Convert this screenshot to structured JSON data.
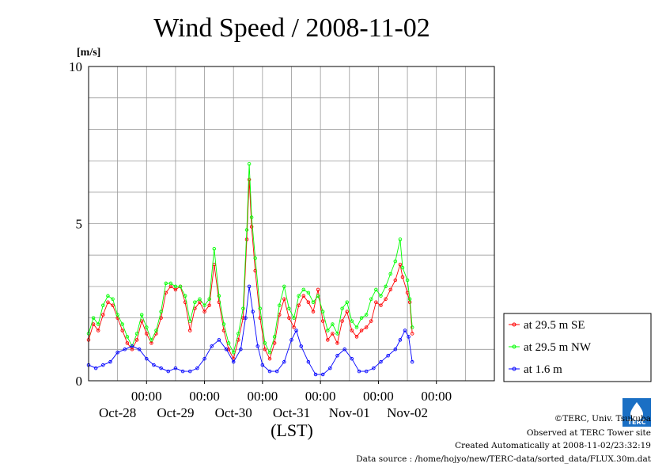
{
  "chart_data": {
    "type": "line",
    "title": "Wind Speed / 2008-11-02",
    "ylabel": "[m/s]",
    "xlabel": "(LST)",
    "ylim": [
      0,
      10
    ],
    "y_ticks": [
      "0",
      "5",
      "10"
    ],
    "x_ticks": [
      {
        "time": "00:00",
        "date": "Oct-28"
      },
      {
        "time": "00:00",
        "date": "Oct-29"
      },
      {
        "time": "00:00",
        "date": "Oct-30"
      },
      {
        "time": "00:00",
        "date": "Oct-31"
      },
      {
        "time": "00:00",
        "date": "Nov-01"
      },
      {
        "time": "00:00",
        "date": "Nov-02"
      }
    ],
    "xlim": [
      "2008-10-27T00:00",
      "2008-11-03T00:00"
    ],
    "grid": true,
    "legend_position": "right",
    "series": [
      {
        "name": "at 29.5 m SE",
        "color": "#ff0000",
        "marker": "circle",
        "points": [
          [
            "2008-10-27T00:00",
            1.3
          ],
          [
            "2008-10-27T02:00",
            1.8
          ],
          [
            "2008-10-27T04:00",
            1.6
          ],
          [
            "2008-10-27T06:00",
            2.1
          ],
          [
            "2008-10-27T08:00",
            2.5
          ],
          [
            "2008-10-27T10:00",
            2.4
          ],
          [
            "2008-10-27T12:00",
            2.0
          ],
          [
            "2008-10-27T14:00",
            1.6
          ],
          [
            "2008-10-27T16:00",
            1.2
          ],
          [
            "2008-10-27T18:00",
            1.0
          ],
          [
            "2008-10-27T20:00",
            1.3
          ],
          [
            "2008-10-27T22:00",
            1.9
          ],
          [
            "2008-10-28T00:00",
            1.5
          ],
          [
            "2008-10-28T02:00",
            1.2
          ],
          [
            "2008-10-28T04:00",
            1.5
          ],
          [
            "2008-10-28T06:00",
            2.0
          ],
          [
            "2008-10-28T08:00",
            2.8
          ],
          [
            "2008-10-28T10:00",
            3.0
          ],
          [
            "2008-10-28T12:00",
            2.9
          ],
          [
            "2008-10-28T14:00",
            3.0
          ],
          [
            "2008-10-28T16:00",
            2.5
          ],
          [
            "2008-10-28T18:00",
            1.6
          ],
          [
            "2008-10-28T20:00",
            2.3
          ],
          [
            "2008-10-28T22:00",
            2.5
          ],
          [
            "2008-10-29T00:00",
            2.2
          ],
          [
            "2008-10-29T02:00",
            2.4
          ],
          [
            "2008-10-29T04:00",
            3.7
          ],
          [
            "2008-10-29T06:00",
            2.5
          ],
          [
            "2008-10-29T08:00",
            1.6
          ],
          [
            "2008-10-29T10:00",
            1.0
          ],
          [
            "2008-10-29T12:00",
            0.7
          ],
          [
            "2008-10-29T14:00",
            1.3
          ],
          [
            "2008-10-29T16:00",
            2.0
          ],
          [
            "2008-10-29T17:30",
            4.5
          ],
          [
            "2008-10-29T18:30",
            6.4
          ],
          [
            "2008-10-29T19:30",
            4.9
          ],
          [
            "2008-10-29T21:00",
            3.5
          ],
          [
            "2008-10-29T23:00",
            2.0
          ],
          [
            "2008-10-30T01:00",
            1.0
          ],
          [
            "2008-10-30T03:00",
            0.7
          ],
          [
            "2008-10-30T05:00",
            1.2
          ],
          [
            "2008-10-30T07:00",
            2.1
          ],
          [
            "2008-10-30T09:00",
            2.6
          ],
          [
            "2008-10-30T11:00",
            2.0
          ],
          [
            "2008-10-30T13:00",
            1.7
          ],
          [
            "2008-10-30T15:00",
            2.4
          ],
          [
            "2008-10-30T17:00",
            2.7
          ],
          [
            "2008-10-30T19:00",
            2.5
          ],
          [
            "2008-10-30T21:00",
            2.2
          ],
          [
            "2008-10-30T23:00",
            2.9
          ],
          [
            "2008-10-31T01:00",
            1.9
          ],
          [
            "2008-10-31T03:00",
            1.3
          ],
          [
            "2008-10-31T05:00",
            1.5
          ],
          [
            "2008-10-31T07:00",
            1.2
          ],
          [
            "2008-10-31T09:00",
            1.9
          ],
          [
            "2008-10-31T11:00",
            2.2
          ],
          [
            "2008-10-31T13:00",
            1.6
          ],
          [
            "2008-10-31T15:00",
            1.4
          ],
          [
            "2008-10-31T17:00",
            1.6
          ],
          [
            "2008-10-31T19:00",
            1.7
          ],
          [
            "2008-10-31T21:00",
            1.9
          ],
          [
            "2008-10-31T23:00",
            2.5
          ],
          [
            "2008-11-01T01:00",
            2.4
          ],
          [
            "2008-11-01T03:00",
            2.6
          ],
          [
            "2008-11-01T05:00",
            2.9
          ],
          [
            "2008-11-01T07:00",
            3.2
          ],
          [
            "2008-11-01T09:00",
            3.7
          ],
          [
            "2008-11-01T10:00",
            3.3
          ],
          [
            "2008-11-01T12:00",
            2.8
          ],
          [
            "2008-11-01T13:00",
            2.5
          ],
          [
            "2008-11-01T14:00",
            1.5
          ]
        ]
      },
      {
        "name": "at 29.5 m NW",
        "color": "#00ff00",
        "marker": "circle",
        "points": [
          [
            "2008-10-27T00:00",
            1.5
          ],
          [
            "2008-10-27T02:00",
            2.0
          ],
          [
            "2008-10-27T04:00",
            1.8
          ],
          [
            "2008-10-27T06:00",
            2.4
          ],
          [
            "2008-10-27T08:00",
            2.7
          ],
          [
            "2008-10-27T10:00",
            2.6
          ],
          [
            "2008-10-27T12:00",
            2.1
          ],
          [
            "2008-10-27T14:00",
            1.8
          ],
          [
            "2008-10-27T16:00",
            1.4
          ],
          [
            "2008-10-27T18:00",
            1.1
          ],
          [
            "2008-10-27T20:00",
            1.5
          ],
          [
            "2008-10-27T22:00",
            2.1
          ],
          [
            "2008-10-28T00:00",
            1.7
          ],
          [
            "2008-10-28T02:00",
            1.3
          ],
          [
            "2008-10-28T04:00",
            1.6
          ],
          [
            "2008-10-28T06:00",
            2.2
          ],
          [
            "2008-10-28T08:00",
            3.1
          ],
          [
            "2008-10-28T10:00",
            3.1
          ],
          [
            "2008-10-28T12:00",
            3.0
          ],
          [
            "2008-10-28T14:00",
            3.0
          ],
          [
            "2008-10-28T16:00",
            2.7
          ],
          [
            "2008-10-28T18:00",
            1.9
          ],
          [
            "2008-10-28T20:00",
            2.5
          ],
          [
            "2008-10-28T22:00",
            2.6
          ],
          [
            "2008-10-29T00:00",
            2.4
          ],
          [
            "2008-10-29T02:00",
            2.6
          ],
          [
            "2008-10-29T04:00",
            4.2
          ],
          [
            "2008-10-29T06:00",
            2.7
          ],
          [
            "2008-10-29T08:00",
            1.8
          ],
          [
            "2008-10-29T10:00",
            1.2
          ],
          [
            "2008-10-29T12:00",
            0.9
          ],
          [
            "2008-10-29T14:00",
            1.5
          ],
          [
            "2008-10-29T16:00",
            2.3
          ],
          [
            "2008-10-29T17:30",
            4.8
          ],
          [
            "2008-10-29T18:30",
            6.9
          ],
          [
            "2008-10-29T19:30",
            5.2
          ],
          [
            "2008-10-29T21:00",
            3.9
          ],
          [
            "2008-10-29T23:00",
            2.3
          ],
          [
            "2008-10-30T01:00",
            1.2
          ],
          [
            "2008-10-30T03:00",
            0.9
          ],
          [
            "2008-10-30T05:00",
            1.4
          ],
          [
            "2008-10-30T07:00",
            2.4
          ],
          [
            "2008-10-30T09:00",
            3.0
          ],
          [
            "2008-10-30T11:00",
            2.3
          ],
          [
            "2008-10-30T13:00",
            2.0
          ],
          [
            "2008-10-30T15:00",
            2.7
          ],
          [
            "2008-10-30T17:00",
            2.9
          ],
          [
            "2008-10-30T19:00",
            2.8
          ],
          [
            "2008-10-30T21:00",
            2.5
          ],
          [
            "2008-10-30T23:00",
            2.7
          ],
          [
            "2008-10-31T01:00",
            2.2
          ],
          [
            "2008-10-31T03:00",
            1.6
          ],
          [
            "2008-10-31T05:00",
            1.8
          ],
          [
            "2008-10-31T07:00",
            1.5
          ],
          [
            "2008-10-31T09:00",
            2.3
          ],
          [
            "2008-10-31T11:00",
            2.5
          ],
          [
            "2008-10-31T13:00",
            1.9
          ],
          [
            "2008-10-31T15:00",
            1.7
          ],
          [
            "2008-10-31T17:00",
            2.0
          ],
          [
            "2008-10-31T19:00",
            2.1
          ],
          [
            "2008-10-31T21:00",
            2.6
          ],
          [
            "2008-10-31T23:00",
            2.9
          ],
          [
            "2008-11-01T01:00",
            2.7
          ],
          [
            "2008-11-01T03:00",
            3.0
          ],
          [
            "2008-11-01T05:00",
            3.4
          ],
          [
            "2008-11-01T07:00",
            3.8
          ],
          [
            "2008-11-01T09:00",
            4.5
          ],
          [
            "2008-11-01T10:00",
            3.6
          ],
          [
            "2008-11-01T12:00",
            3.2
          ],
          [
            "2008-11-01T13:00",
            2.6
          ],
          [
            "2008-11-01T14:00",
            1.7
          ]
        ]
      },
      {
        "name": "at 1.6 m",
        "color": "#0000ff",
        "marker": "circle",
        "points": [
          [
            "2008-10-27T00:00",
            0.5
          ],
          [
            "2008-10-27T03:00",
            0.4
          ],
          [
            "2008-10-27T06:00",
            0.5
          ],
          [
            "2008-10-27T09:00",
            0.6
          ],
          [
            "2008-10-27T12:00",
            0.9
          ],
          [
            "2008-10-27T15:00",
            1.0
          ],
          [
            "2008-10-27T18:00",
            1.1
          ],
          [
            "2008-10-27T21:00",
            1.0
          ],
          [
            "2008-10-28T00:00",
            0.7
          ],
          [
            "2008-10-28T03:00",
            0.5
          ],
          [
            "2008-10-28T06:00",
            0.4
          ],
          [
            "2008-10-28T09:00",
            0.3
          ],
          [
            "2008-10-28T12:00",
            0.4
          ],
          [
            "2008-10-28T15:00",
            0.3
          ],
          [
            "2008-10-28T18:00",
            0.3
          ],
          [
            "2008-10-28T21:00",
            0.4
          ],
          [
            "2008-10-29T00:00",
            0.7
          ],
          [
            "2008-10-29T03:00",
            1.1
          ],
          [
            "2008-10-29T06:00",
            1.3
          ],
          [
            "2008-10-29T09:00",
            1.0
          ],
          [
            "2008-10-29T12:00",
            0.6
          ],
          [
            "2008-10-29T15:00",
            1.0
          ],
          [
            "2008-10-29T17:00",
            2.0
          ],
          [
            "2008-10-29T18:30",
            3.0
          ],
          [
            "2008-10-29T20:00",
            2.2
          ],
          [
            "2008-10-29T22:00",
            1.1
          ],
          [
            "2008-10-30T00:00",
            0.5
          ],
          [
            "2008-10-30T03:00",
            0.3
          ],
          [
            "2008-10-30T06:00",
            0.3
          ],
          [
            "2008-10-30T09:00",
            0.6
          ],
          [
            "2008-10-30T12:00",
            1.3
          ],
          [
            "2008-10-30T14:00",
            1.6
          ],
          [
            "2008-10-30T16:00",
            1.1
          ],
          [
            "2008-10-30T19:00",
            0.6
          ],
          [
            "2008-10-30T22:00",
            0.2
          ],
          [
            "2008-10-31T01:00",
            0.2
          ],
          [
            "2008-10-31T04:00",
            0.4
          ],
          [
            "2008-10-31T07:00",
            0.8
          ],
          [
            "2008-10-31T10:00",
            1.0
          ],
          [
            "2008-10-31T13:00",
            0.7
          ],
          [
            "2008-10-31T16:00",
            0.3
          ],
          [
            "2008-10-31T19:00",
            0.3
          ],
          [
            "2008-10-31T22:00",
            0.4
          ],
          [
            "2008-11-01T01:00",
            0.6
          ],
          [
            "2008-11-01T04:00",
            0.8
          ],
          [
            "2008-11-01T07:00",
            1.0
          ],
          [
            "2008-11-01T09:00",
            1.3
          ],
          [
            "2008-11-01T11:00",
            1.6
          ],
          [
            "2008-11-01T12:30",
            1.4
          ],
          [
            "2008-11-01T14:00",
            0.6
          ]
        ]
      }
    ]
  },
  "footer": {
    "copyright": "©TERC, Univ. Tsukuba",
    "observed": "Observed at TERC Tower site",
    "created": "Created Automatically at 2008-11-02/23:32:19",
    "source": "Data source : /home/hojyo/new/TERC-data/sorted_data/FLUX.30m.dat",
    "logo_text": "TERC"
  }
}
